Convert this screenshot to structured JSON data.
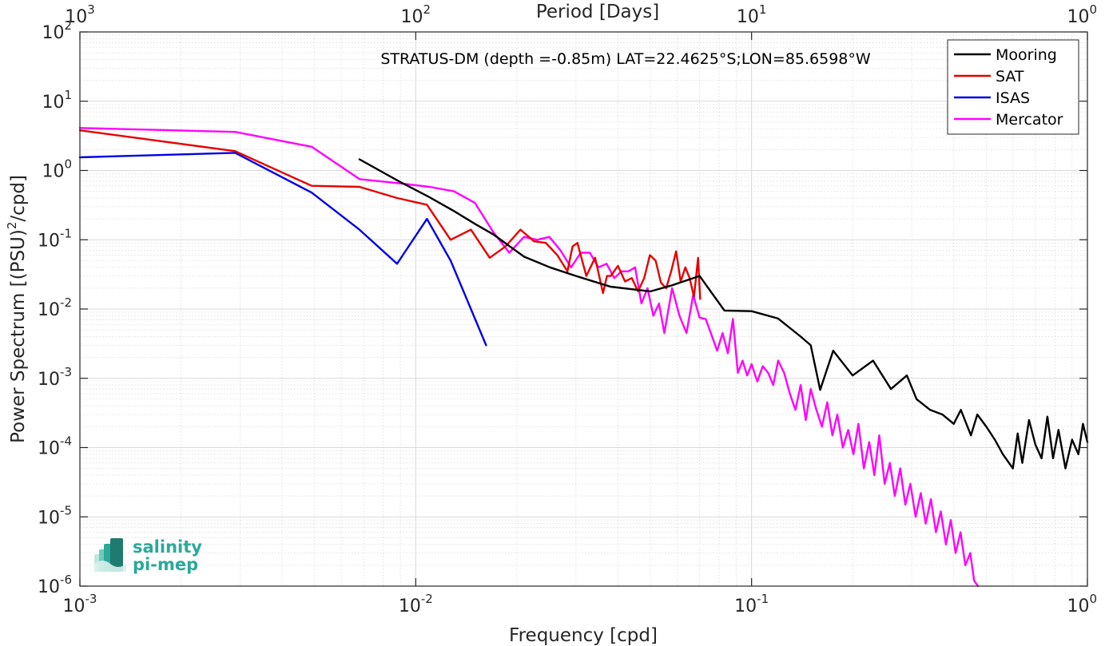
{
  "chart_data": {
    "type": "line",
    "title": "STRATUS-DM (depth =-0.85m) LAT=22.4625°S;LON=85.6598°W",
    "xlabel": "Frequency [cpd]",
    "ylabel_main": "Power Spectrum [(PSU)",
    "ylabel_sup": "2",
    "ylabel_tail": "/cpd]",
    "x2label": "Period [Days]",
    "xscale": "log",
    "yscale": "log",
    "xlim": [
      0.001,
      1
    ],
    "ylim": [
      1e-06,
      100
    ],
    "grid": true,
    "legend_position": "top-right",
    "x_ticks": [
      {
        "value": 0.001,
        "base": "10",
        "exp": "-3"
      },
      {
        "value": 0.01,
        "base": "10",
        "exp": "-2"
      },
      {
        "value": 0.1,
        "base": "10",
        "exp": "-1"
      },
      {
        "value": 1,
        "base": "10",
        "exp": "0"
      }
    ],
    "x2_ticks": [
      {
        "value": 0.001,
        "base": "10",
        "exp": "3"
      },
      {
        "value": 0.01,
        "base": "10",
        "exp": "2"
      },
      {
        "value": 0.1,
        "base": "10",
        "exp": "1"
      },
      {
        "value": 1,
        "base": "10",
        "exp": "0"
      }
    ],
    "y_ticks": [
      {
        "value": 100,
        "base": "10",
        "exp": "2"
      },
      {
        "value": 10,
        "base": "10",
        "exp": "1"
      },
      {
        "value": 1,
        "base": "10",
        "exp": "0"
      },
      {
        "value": 0.1,
        "base": "10",
        "exp": "-1"
      },
      {
        "value": 0.01,
        "base": "10",
        "exp": "-2"
      },
      {
        "value": 0.001,
        "base": "10",
        "exp": "-3"
      },
      {
        "value": 0.0001,
        "base": "10",
        "exp": "-4"
      },
      {
        "value": 1e-05,
        "base": "10",
        "exp": "-5"
      },
      {
        "value": 1e-06,
        "base": "10",
        "exp": "-6"
      }
    ],
    "series": [
      {
        "name": "Mooring",
        "color": "#000000",
        "x": [
          0.0068,
          0.0089,
          0.0109,
          0.013,
          0.015,
          0.017,
          0.021,
          0.0251,
          0.03,
          0.038,
          0.05,
          0.058,
          0.07,
          0.083,
          0.1,
          0.12,
          0.14,
          0.15,
          0.16,
          0.175,
          0.2,
          0.23,
          0.26,
          0.29,
          0.31,
          0.34,
          0.37,
          0.4,
          0.42,
          0.45,
          0.47,
          0.5,
          0.53,
          0.56,
          0.6,
          0.62,
          0.64,
          0.67,
          0.7,
          0.73,
          0.76,
          0.79,
          0.82,
          0.86,
          0.9,
          0.94,
          0.97,
          1.0
        ],
        "y": [
          1.45,
          0.7,
          0.42,
          0.26,
          0.17,
          0.12,
          0.057,
          0.04,
          0.03,
          0.021,
          0.018,
          0.022,
          0.03,
          0.0095,
          0.0093,
          0.0073,
          0.004,
          0.003,
          0.00068,
          0.0025,
          0.0011,
          0.0018,
          0.0007,
          0.0011,
          0.0005,
          0.00035,
          0.0003,
          0.00022,
          0.00035,
          0.00015,
          0.0003,
          0.0002,
          0.00013,
          8e-05,
          5e-05,
          0.00016,
          6e-05,
          0.00025,
          0.00011,
          7e-05,
          0.00028,
          7e-05,
          0.00018,
          5e-05,
          0.00013,
          8e-05,
          0.00022,
          0.00012
        ]
      },
      {
        "name": "SAT",
        "color": "#e60000",
        "x": [
          0.001,
          0.0029,
          0.0049,
          0.0068,
          0.0088,
          0.0108,
          0.0127,
          0.0146,
          0.0166,
          0.0185,
          0.0205,
          0.0225,
          0.0244,
          0.0264,
          0.0283,
          0.0293,
          0.0303,
          0.0322,
          0.0342,
          0.0361,
          0.0371,
          0.0381,
          0.04,
          0.042,
          0.044,
          0.0459,
          0.0479,
          0.0498,
          0.0518,
          0.0537,
          0.0557,
          0.0576,
          0.0596,
          0.0615,
          0.0635,
          0.0654,
          0.0674,
          0.0693,
          0.0703
        ],
        "y": [
          3.8,
          1.9,
          0.6,
          0.58,
          0.4,
          0.32,
          0.1,
          0.14,
          0.055,
          0.08,
          0.14,
          0.095,
          0.09,
          0.06,
          0.035,
          0.08,
          0.09,
          0.03,
          0.055,
          0.017,
          0.03,
          0.03,
          0.042,
          0.025,
          0.028,
          0.018,
          0.028,
          0.06,
          0.05,
          0.024,
          0.02,
          0.035,
          0.068,
          0.025,
          0.04,
          0.028,
          0.015,
          0.055,
          0.014
        ]
      },
      {
        "name": "ISAS",
        "color": "#0000e6",
        "x": [
          0.001,
          0.0029,
          0.0049,
          0.0068,
          0.0088,
          0.0108,
          0.0127,
          0.0146,
          0.0162
        ],
        "y": [
          1.55,
          1.8,
          0.48,
          0.14,
          0.045,
          0.2,
          0.05,
          0.01,
          0.003
        ]
      },
      {
        "name": "Mercator",
        "color": "#ff00ff",
        "x": [
          0.001,
          0.0029,
          0.0049,
          0.0068,
          0.009,
          0.011,
          0.013,
          0.015,
          0.017,
          0.019,
          0.021,
          0.023,
          0.025,
          0.027,
          0.029,
          0.031,
          0.033,
          0.035,
          0.037,
          0.039,
          0.041,
          0.043,
          0.045,
          0.047,
          0.049,
          0.051,
          0.053,
          0.055,
          0.058,
          0.061,
          0.064,
          0.067,
          0.07,
          0.073,
          0.076,
          0.079,
          0.082,
          0.085,
          0.088,
          0.091,
          0.094,
          0.097,
          0.1,
          0.104,
          0.108,
          0.112,
          0.116,
          0.12,
          0.125,
          0.13,
          0.135,
          0.14,
          0.145,
          0.15,
          0.156,
          0.162,
          0.168,
          0.174,
          0.18,
          0.187,
          0.194,
          0.201,
          0.208,
          0.216,
          0.224,
          0.232,
          0.24,
          0.249,
          0.258,
          0.267,
          0.277,
          0.287,
          0.297,
          0.308,
          0.319,
          0.33,
          0.342,
          0.354,
          0.366,
          0.379,
          0.392,
          0.405,
          0.419,
          0.433,
          0.448,
          0.46,
          0.472
        ],
        "y": [
          4.1,
          3.6,
          2.2,
          0.75,
          0.65,
          0.58,
          0.5,
          0.34,
          0.13,
          0.065,
          0.11,
          0.1,
          0.11,
          0.07,
          0.04,
          0.065,
          0.065,
          0.04,
          0.045,
          0.028,
          0.035,
          0.035,
          0.04,
          0.012,
          0.02,
          0.008,
          0.012,
          0.0045,
          0.02,
          0.008,
          0.0045,
          0.016,
          0.0075,
          0.0072,
          0.0042,
          0.0025,
          0.0045,
          0.0023,
          0.0072,
          0.0012,
          0.0018,
          0.0011,
          0.0016,
          0.0009,
          0.0015,
          0.0012,
          0.0008,
          0.0018,
          0.0012,
          0.0006,
          0.00035,
          0.0008,
          0.00025,
          0.0007,
          0.00035,
          0.0002,
          0.00045,
          0.00015,
          0.0003,
          0.0001,
          0.00018,
          8e-05,
          0.00022,
          5e-05,
          0.00012,
          4e-05,
          0.00015,
          3e-05,
          6e-05,
          2e-05,
          5e-05,
          1.5e-05,
          3e-05,
          1e-05,
          2.2e-05,
          8e-06,
          1.8e-05,
          6e-06,
          1.2e-05,
          4e-06,
          9e-06,
          3e-06,
          6e-06,
          2e-06,
          3e-06,
          1.2e-06,
          1e-06
        ]
      }
    ]
  },
  "logo": {
    "line1": "salinity",
    "line2": "pi-mep"
  },
  "colors": {
    "logo_accent": "#2aa89a",
    "logo_dark": "#1f7a70"
  }
}
